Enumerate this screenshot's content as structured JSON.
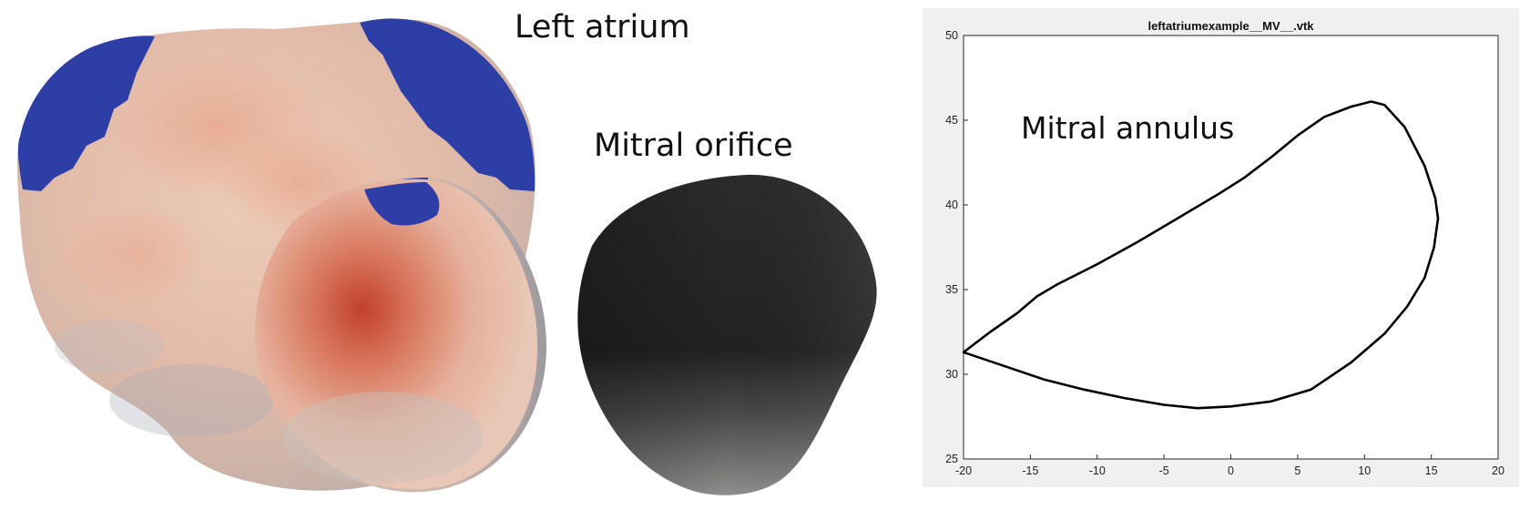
{
  "labels": {
    "left_atrium": "Left atrium",
    "mitral_orifice": "Mitral orifice"
  },
  "colors": {
    "atrium_surface": "#e3bfae",
    "atrium_hot": "#c84a36",
    "vein_blue": "#2c3ea8",
    "orifice_dark": "#262626",
    "orifice_light": "#8d8d8d",
    "plot_panel": "#f0f0f0",
    "plot_line": "#000000"
  },
  "chart_data": {
    "type": "line",
    "title": "leftatriumexample__MV__.vtk",
    "annotation": "Mitral annulus",
    "xlabel": "",
    "ylabel": "",
    "xlim": [
      -20,
      20
    ],
    "ylim": [
      25,
      50
    ],
    "xticks": [
      -20,
      -15,
      -10,
      -5,
      0,
      5,
      10,
      15,
      20
    ],
    "yticks": [
      25,
      30,
      35,
      40,
      45,
      50
    ],
    "grid": false,
    "series": [
      {
        "closed": true,
        "x": [
          -20.0,
          -18.0,
          -16.0,
          -14.5,
          -13.0,
          -10.0,
          -7.0,
          -4.0,
          -1.0,
          1.0,
          3.0,
          5.0,
          7.0,
          9.0,
          10.5,
          11.5,
          13.0,
          14.5,
          15.3,
          15.5,
          15.2,
          14.5,
          13.2,
          11.5,
          9.0,
          6.0,
          3.0,
          0.0,
          -2.5,
          -5.0,
          -8.0,
          -11.0,
          -14.0,
          -17.0,
          -20.0
        ],
        "y": [
          31.3,
          32.5,
          33.6,
          34.6,
          35.3,
          36.5,
          37.8,
          39.2,
          40.6,
          41.6,
          42.8,
          44.1,
          45.2,
          45.8,
          46.1,
          45.9,
          44.6,
          42.3,
          40.4,
          39.2,
          37.5,
          35.7,
          34.0,
          32.4,
          30.7,
          29.1,
          28.4,
          28.1,
          28.0,
          28.2,
          28.6,
          29.1,
          29.7,
          30.5,
          31.3
        ]
      }
    ]
  }
}
